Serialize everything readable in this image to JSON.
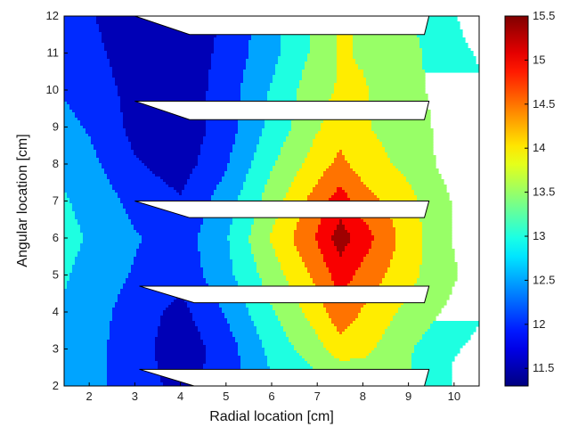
{
  "chart_data": {
    "type": "heatmap",
    "subtype": "filled-contour",
    "title": "",
    "xlabel": "Radial location [cm]",
    "ylabel": "Angular location [cm]",
    "xlim": [
      1.45,
      10.55
    ],
    "ylim": [
      2,
      12
    ],
    "xticks": [
      "2",
      "3",
      "4",
      "5",
      "6",
      "7",
      "8",
      "9",
      "10"
    ],
    "yticks": [
      "2",
      "3",
      "4",
      "5",
      "6",
      "7",
      "8",
      "9",
      "10",
      "11",
      "12"
    ],
    "colorbar": {
      "range": [
        11.3,
        15.5
      ],
      "ticks": [
        "11.5",
        "12",
        "12.5",
        "13",
        "13.5",
        "14",
        "14.5",
        "15",
        "15.5"
      ]
    },
    "contour_levels": [
      11.75,
      12.25,
      12.75,
      13.25,
      13.75,
      14.25,
      14.75,
      15.25
    ],
    "x": [
      1.45,
      2,
      3,
      4,
      5,
      6,
      7,
      7.5,
      8,
      9,
      10,
      10.55
    ],
    "y": [
      2,
      2.5,
      3,
      4,
      5,
      6,
      7,
      8,
      9,
      10,
      11,
      12
    ],
    "z": [
      [
        12.6,
        12.4,
        12.0,
        11.6,
        12.2,
        12.8,
        13.3,
        13.6,
        13.6,
        13.3,
        12.7,
        12.7
      ],
      [
        12.6,
        12.4,
        12.0,
        11.5,
        12.0,
        12.8,
        13.3,
        13.6,
        13.6,
        13.3,
        12.7,
        12.6
      ],
      [
        12.6,
        12.4,
        12.0,
        11.4,
        12.0,
        12.9,
        13.6,
        14.0,
        13.9,
        13.3,
        12.8,
        12.6
      ],
      [
        12.7,
        12.5,
        12.0,
        11.6,
        12.3,
        13.2,
        14.0,
        14.6,
        14.2,
        13.6,
        13.1,
        12.8
      ],
      [
        12.8,
        12.6,
        12.2,
        11.9,
        12.6,
        13.5,
        14.4,
        15.0,
        14.6,
        13.9,
        13.3,
        13.0
      ],
      [
        12.9,
        12.7,
        12.3,
        12.0,
        12.7,
        13.8,
        14.8,
        15.5,
        15.0,
        14.0,
        13.2,
        13.0
      ],
      [
        12.8,
        12.6,
        12.1,
        11.8,
        12.5,
        13.5,
        14.5,
        15.0,
        14.5,
        13.9,
        13.2,
        12.9
      ],
      [
        12.6,
        12.4,
        11.8,
        11.5,
        12.2,
        13.2,
        14.0,
        14.4,
        14.0,
        13.6,
        13.0,
        12.8
      ],
      [
        12.4,
        12.2,
        11.6,
        11.4,
        12.0,
        12.9,
        13.7,
        14.0,
        13.8,
        13.5,
        13.0,
        12.8
      ],
      [
        12.2,
        12.0,
        11.6,
        11.4,
        12.0,
        12.8,
        13.6,
        13.8,
        13.8,
        13.4,
        13.0,
        12.8
      ],
      [
        12.0,
        11.9,
        11.5,
        11.4,
        11.9,
        12.6,
        13.4,
        13.8,
        13.7,
        13.4,
        12.9,
        12.7
      ],
      [
        11.9,
        11.8,
        11.4,
        11.4,
        11.8,
        12.6,
        13.4,
        13.8,
        13.7,
        13.3,
        12.8,
        12.4
      ]
    ],
    "obstacles": [
      {
        "x_left": 3.0,
        "x_right": 9.45,
        "y_tip": 12.0,
        "y_top": 12.0,
        "y_bottom": 11.5
      },
      {
        "x_left": 3.0,
        "x_right": 9.45,
        "y_tip": 9.7,
        "y_top": 9.7,
        "y_bottom": 9.2
      },
      {
        "x_left": 3.0,
        "x_right": 9.45,
        "y_tip": 7.0,
        "y_top": 7.0,
        "y_bottom": 6.55
      },
      {
        "x_left": 3.1,
        "x_right": 9.45,
        "y_tip": 4.7,
        "y_top": 4.7,
        "y_bottom": 4.25
      },
      {
        "x_left": 3.1,
        "x_right": 9.45,
        "y_tip": 2.45,
        "y_top": 2.45,
        "y_bottom": 2.0
      }
    ],
    "colormap": "jet",
    "grid": false,
    "legend": "colorbar-right"
  }
}
